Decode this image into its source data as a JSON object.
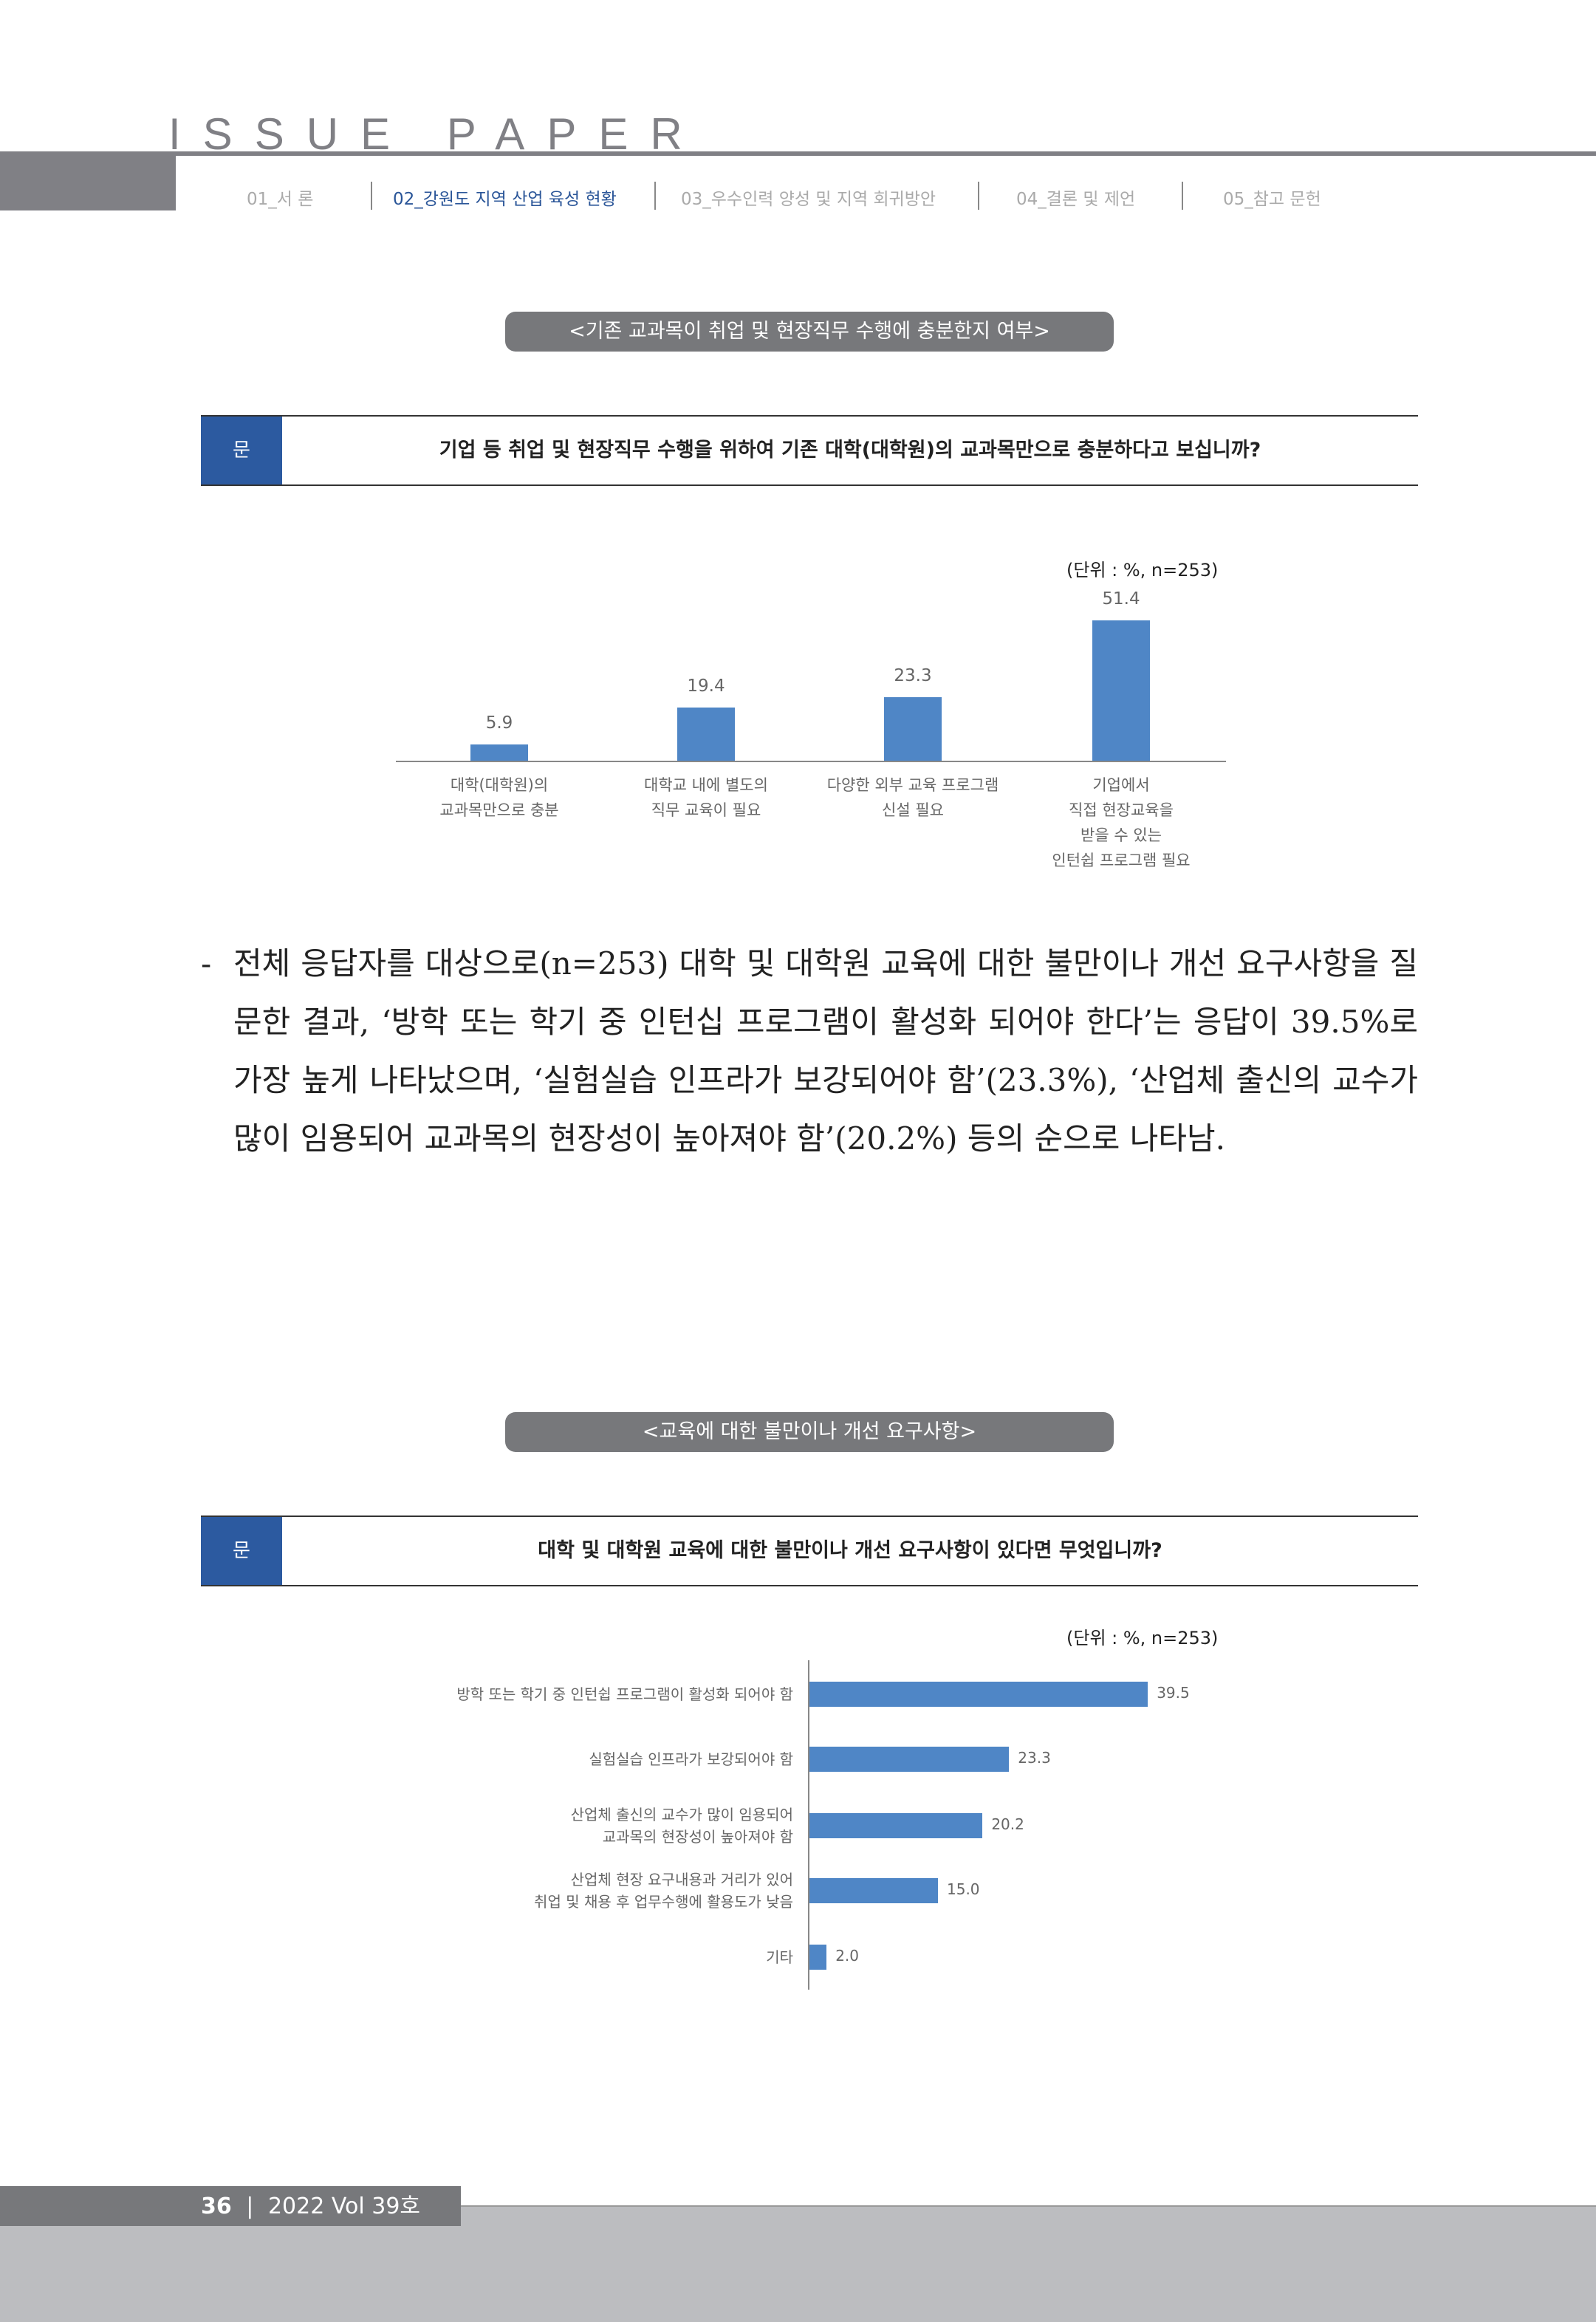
{
  "header": {
    "brand": "ISSUE PAPER",
    "nav": [
      {
        "label": "01_서 론",
        "active": false
      },
      {
        "label": "02_강원도 지역 산업 육성 현황",
        "active": true
      },
      {
        "label": "03_우수인력 양성 및 지역 회귀방안",
        "active": false
      },
      {
        "label": "04_결론 및 제언",
        "active": false
      },
      {
        "label": "05_참고 문헌",
        "active": false
      }
    ]
  },
  "section1": {
    "title": "<기존 교과목이 취업 및 현장직무 수행에 충분한지 여부>",
    "q_mark": "문",
    "question": "기업 등 취업 및 현장직무 수행을 위하여 기존 대학(대학원)의 교과목만으로 충분하다고 보십니까?",
    "unit": "(단위 : %, n=253)"
  },
  "paragraph": {
    "dash": "-",
    "text": "전체 응답자를 대상으로(n=253) 대학 및 대학원 교육에 대한 불만이나 개선 요구사항을 질문한 결과, ‘방학 또는 학기 중 인턴십 프로그램이 활성화 되어야 한다’는 응답이 39.5%로 가장 높게 나타났으며, ‘실험실습 인프라가 보강되어야 함’(23.3%), ‘산업체 출신의 교수가 많이 임용되어 교과목의 현장성이 높아져야 함’(20.2%) 등의 순으로 나타남."
  },
  "section2": {
    "title": "<교육에 대한 불만이나 개선 요구사항>",
    "q_mark": "문",
    "question": "대학 및 대학원 교육에 대한 불만이나 개선 요구사항이 있다면 무엇입니까?",
    "unit": "(단위 : %, n=253)"
  },
  "chart_data": [
    {
      "type": "bar",
      "orientation": "vertical",
      "categories": [
        [
          "대학(대학원)의",
          "교과목만으로 충분"
        ],
        [
          "대학교 내에 별도의",
          "직무 교육이 필요"
        ],
        [
          "다양한 외부 교육 프로그램",
          "신설 필요"
        ],
        [
          "기업에서",
          "직접 현장교육을",
          "받을 수 있는",
          "인턴쉽 프로그램 필요"
        ]
      ],
      "values": [
        5.9,
        19.4,
        23.3,
        51.4
      ],
      "value_labels": [
        "5.9",
        "19.4",
        "23.3",
        "51.4"
      ],
      "color": "#4f86c6",
      "grid": false
    },
    {
      "type": "bar",
      "orientation": "horizontal",
      "categories": [
        [
          "방학 또는 학기 중 인턴쉽 프로그램이 활성화 되어야 함"
        ],
        [
          "실험실습 인프라가 보강되어야 함"
        ],
        [
          "산업체 출신의 교수가 많이 임용되어",
          "교과목의 현장성이 높아져야 함"
        ],
        [
          "산업체 현장 요구내용과 거리가 있어",
          "취업 및 채용 후 업무수행에 활용도가 낮음"
        ],
        [
          "기타"
        ]
      ],
      "values": [
        39.5,
        23.3,
        20.2,
        15.0,
        2.0
      ],
      "value_labels": [
        "39.5",
        "23.3",
        "20.2",
        "15.0",
        "2.0"
      ],
      "color": "#4f86c6",
      "grid": false
    }
  ],
  "footer": {
    "page": "36",
    "sep": "|",
    "issue": "2022 Vol 39호"
  }
}
